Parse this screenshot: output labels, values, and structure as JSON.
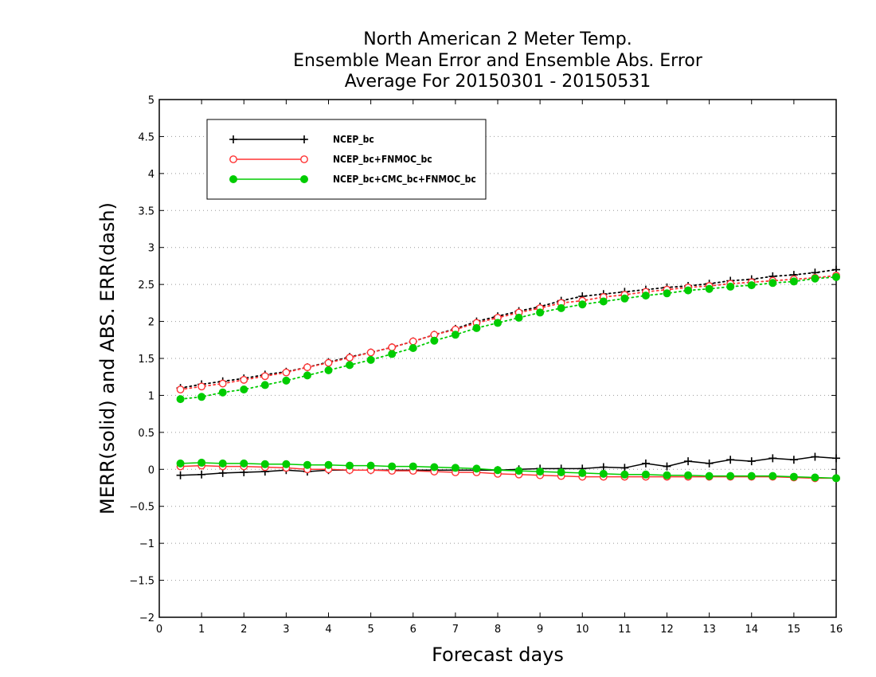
{
  "chart_data": {
    "type": "line",
    "title": [
      "North American 2 Meter Temp.",
      "Ensemble Mean Error and Ensemble Abs. Error",
      "Average For 20150301 - 20150531"
    ],
    "xlabel": "Forecast days",
    "ylabel": "MERR(solid) and ABS. ERR(dash)",
    "xlim": [
      0,
      16
    ],
    "ylim": [
      -2,
      5
    ],
    "xticks": [
      "0",
      "1",
      "2",
      "3",
      "4",
      "5",
      "6",
      "7",
      "8",
      "9",
      "10",
      "11",
      "12",
      "13",
      "14",
      "15",
      "16"
    ],
    "yticks": [
      "−2",
      "−1.5",
      "−1",
      "−0.5",
      "0",
      "0.5",
      "1",
      "1.5",
      "2",
      "2.5",
      "3",
      "3.5",
      "4",
      "4.5",
      "5"
    ],
    "grid": "horizontal dotted",
    "legend_position": "top-left",
    "x": [
      0.5,
      1,
      1.5,
      2,
      2.5,
      3,
      3.5,
      4,
      4.5,
      5,
      5.5,
      6,
      6.5,
      7,
      7.5,
      8,
      8.5,
      9,
      9.5,
      10,
      10.5,
      11,
      11.5,
      12,
      12.5,
      13,
      13.5,
      14,
      14.5,
      15,
      15.5,
      16
    ],
    "series": [
      {
        "name": "NCEP_bc",
        "color": "#000000",
        "marker": "plus",
        "merr": [
          -0.08,
          -0.07,
          -0.05,
          -0.04,
          -0.03,
          -0.01,
          -0.03,
          -0.01,
          -0.01,
          -0.01,
          -0.01,
          -0.01,
          -0.01,
          -0.01,
          -0.01,
          -0.01,
          0.0,
          0.01,
          0.01,
          0.01,
          0.03,
          0.02,
          0.08,
          0.04,
          0.11,
          0.08,
          0.13,
          0.11,
          0.15,
          0.13,
          0.17,
          0.15
        ],
        "abserr": [
          1.1,
          1.15,
          1.19,
          1.23,
          1.28,
          1.32,
          1.38,
          1.45,
          1.52,
          1.58,
          1.65,
          1.73,
          1.82,
          1.9,
          2.0,
          2.07,
          2.14,
          2.2,
          2.28,
          2.34,
          2.37,
          2.4,
          2.43,
          2.46,
          2.48,
          2.51,
          2.55,
          2.57,
          2.61,
          2.63,
          2.66,
          2.7
        ]
      },
      {
        "name": "NCEP_bc+FNMOC_bc",
        "color": "#ff3333",
        "marker": "open-circle",
        "merr": [
          0.04,
          0.05,
          0.04,
          0.04,
          0.03,
          0.02,
          0.0,
          0.0,
          -0.01,
          -0.01,
          -0.02,
          -0.02,
          -0.03,
          -0.04,
          -0.04,
          -0.06,
          -0.07,
          -0.08,
          -0.09,
          -0.1,
          -0.1,
          -0.1,
          -0.1,
          -0.1,
          -0.1,
          -0.1,
          -0.1,
          -0.1,
          -0.1,
          -0.11,
          -0.12,
          -0.12
        ],
        "abserr": [
          1.08,
          1.12,
          1.16,
          1.21,
          1.26,
          1.31,
          1.38,
          1.44,
          1.51,
          1.58,
          1.65,
          1.73,
          1.82,
          1.89,
          1.98,
          2.05,
          2.12,
          2.18,
          2.25,
          2.28,
          2.33,
          2.36,
          2.4,
          2.43,
          2.46,
          2.48,
          2.51,
          2.53,
          2.55,
          2.57,
          2.59,
          2.62
        ]
      },
      {
        "name": "NCEP_bc+CMC_bc+FNMOC_bc",
        "color": "#00cc00",
        "marker": "filled-circle",
        "merr": [
          0.08,
          0.09,
          0.08,
          0.08,
          0.07,
          0.07,
          0.06,
          0.06,
          0.05,
          0.05,
          0.04,
          0.04,
          0.03,
          0.02,
          0.01,
          -0.01,
          -0.02,
          -0.03,
          -0.04,
          -0.05,
          -0.06,
          -0.07,
          -0.07,
          -0.08,
          -0.08,
          -0.09,
          -0.09,
          -0.09,
          -0.09,
          -0.1,
          -0.11,
          -0.12
        ],
        "abserr": [
          0.95,
          0.98,
          1.04,
          1.08,
          1.14,
          1.2,
          1.27,
          1.34,
          1.41,
          1.48,
          1.56,
          1.64,
          1.74,
          1.82,
          1.91,
          1.98,
          2.05,
          2.12,
          2.18,
          2.23,
          2.27,
          2.31,
          2.35,
          2.38,
          2.42,
          2.44,
          2.47,
          2.49,
          2.52,
          2.54,
          2.58,
          2.6
        ]
      }
    ]
  }
}
